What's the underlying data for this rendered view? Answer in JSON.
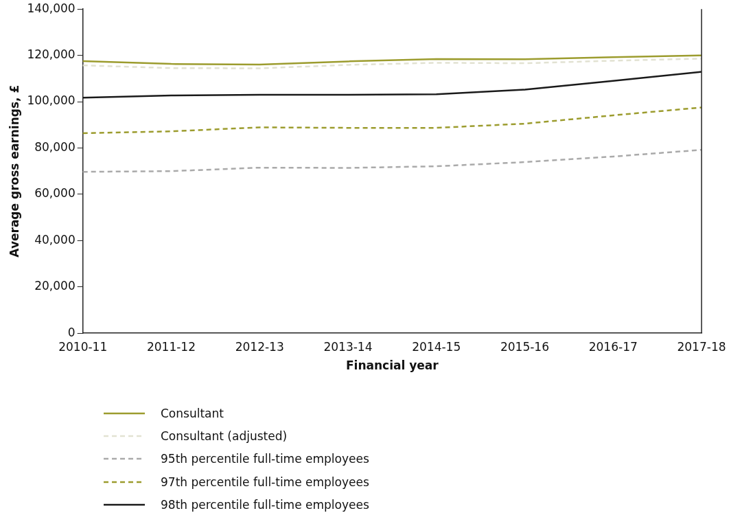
{
  "chart_data": {
    "type": "line",
    "xlabel": "Financial year",
    "ylabel": "Average gross earnings, £",
    "categories": [
      "2010-11",
      "2011-12",
      "2012-13",
      "2013-14",
      "2014-15",
      "2015-16",
      "2016-17",
      "2017-18"
    ],
    "series": [
      {
        "name": "Consultant",
        "color": "#9c9c2e",
        "line_style": "solid",
        "values": [
          117500,
          116300,
          116000,
          117400,
          118400,
          118300,
          119200,
          120000
        ]
      },
      {
        "name": "Consultant (adjusted)",
        "color": "#e2e2d2",
        "line_style": "dashed",
        "values": [
          115700,
          114500,
          114400,
          115900,
          116800,
          116600,
          117700,
          118600
        ]
      },
      {
        "name": "95th percentile full-time employees",
        "color": "#aaaaaa",
        "line_style": "dashed",
        "values": [
          69700,
          70000,
          71500,
          71400,
          72100,
          73900,
          76300,
          79200
        ]
      },
      {
        "name": "97th percentile full-time employees",
        "color": "#9c9c2e",
        "line_style": "dashed",
        "values": [
          86400,
          87200,
          88900,
          88700,
          88700,
          90500,
          94100,
          97500
        ]
      },
      {
        "name": "98th percentile full-time employees",
        "color": "#1a1a1a",
        "line_style": "solid",
        "values": [
          101700,
          102700,
          103000,
          103000,
          103200,
          105200,
          109000,
          112900
        ]
      }
    ],
    "ylim": [
      0,
      140000
    ],
    "yticks": [
      0,
      {
        "value": 20000,
        "label": "20,000"
      },
      {
        "value": 40000,
        "label": "40,000"
      },
      {
        "value": 60000,
        "label": "60,000"
      },
      {
        "value": 80000,
        "label": "80,000"
      },
      {
        "value": 100000,
        "label": "100,000"
      },
      {
        "value": 120000,
        "label": "120,000"
      },
      {
        "value": 140000,
        "label": "140,000"
      }
    ],
    "grid": false,
    "legend": "bottom left",
    "marker": "none"
  }
}
